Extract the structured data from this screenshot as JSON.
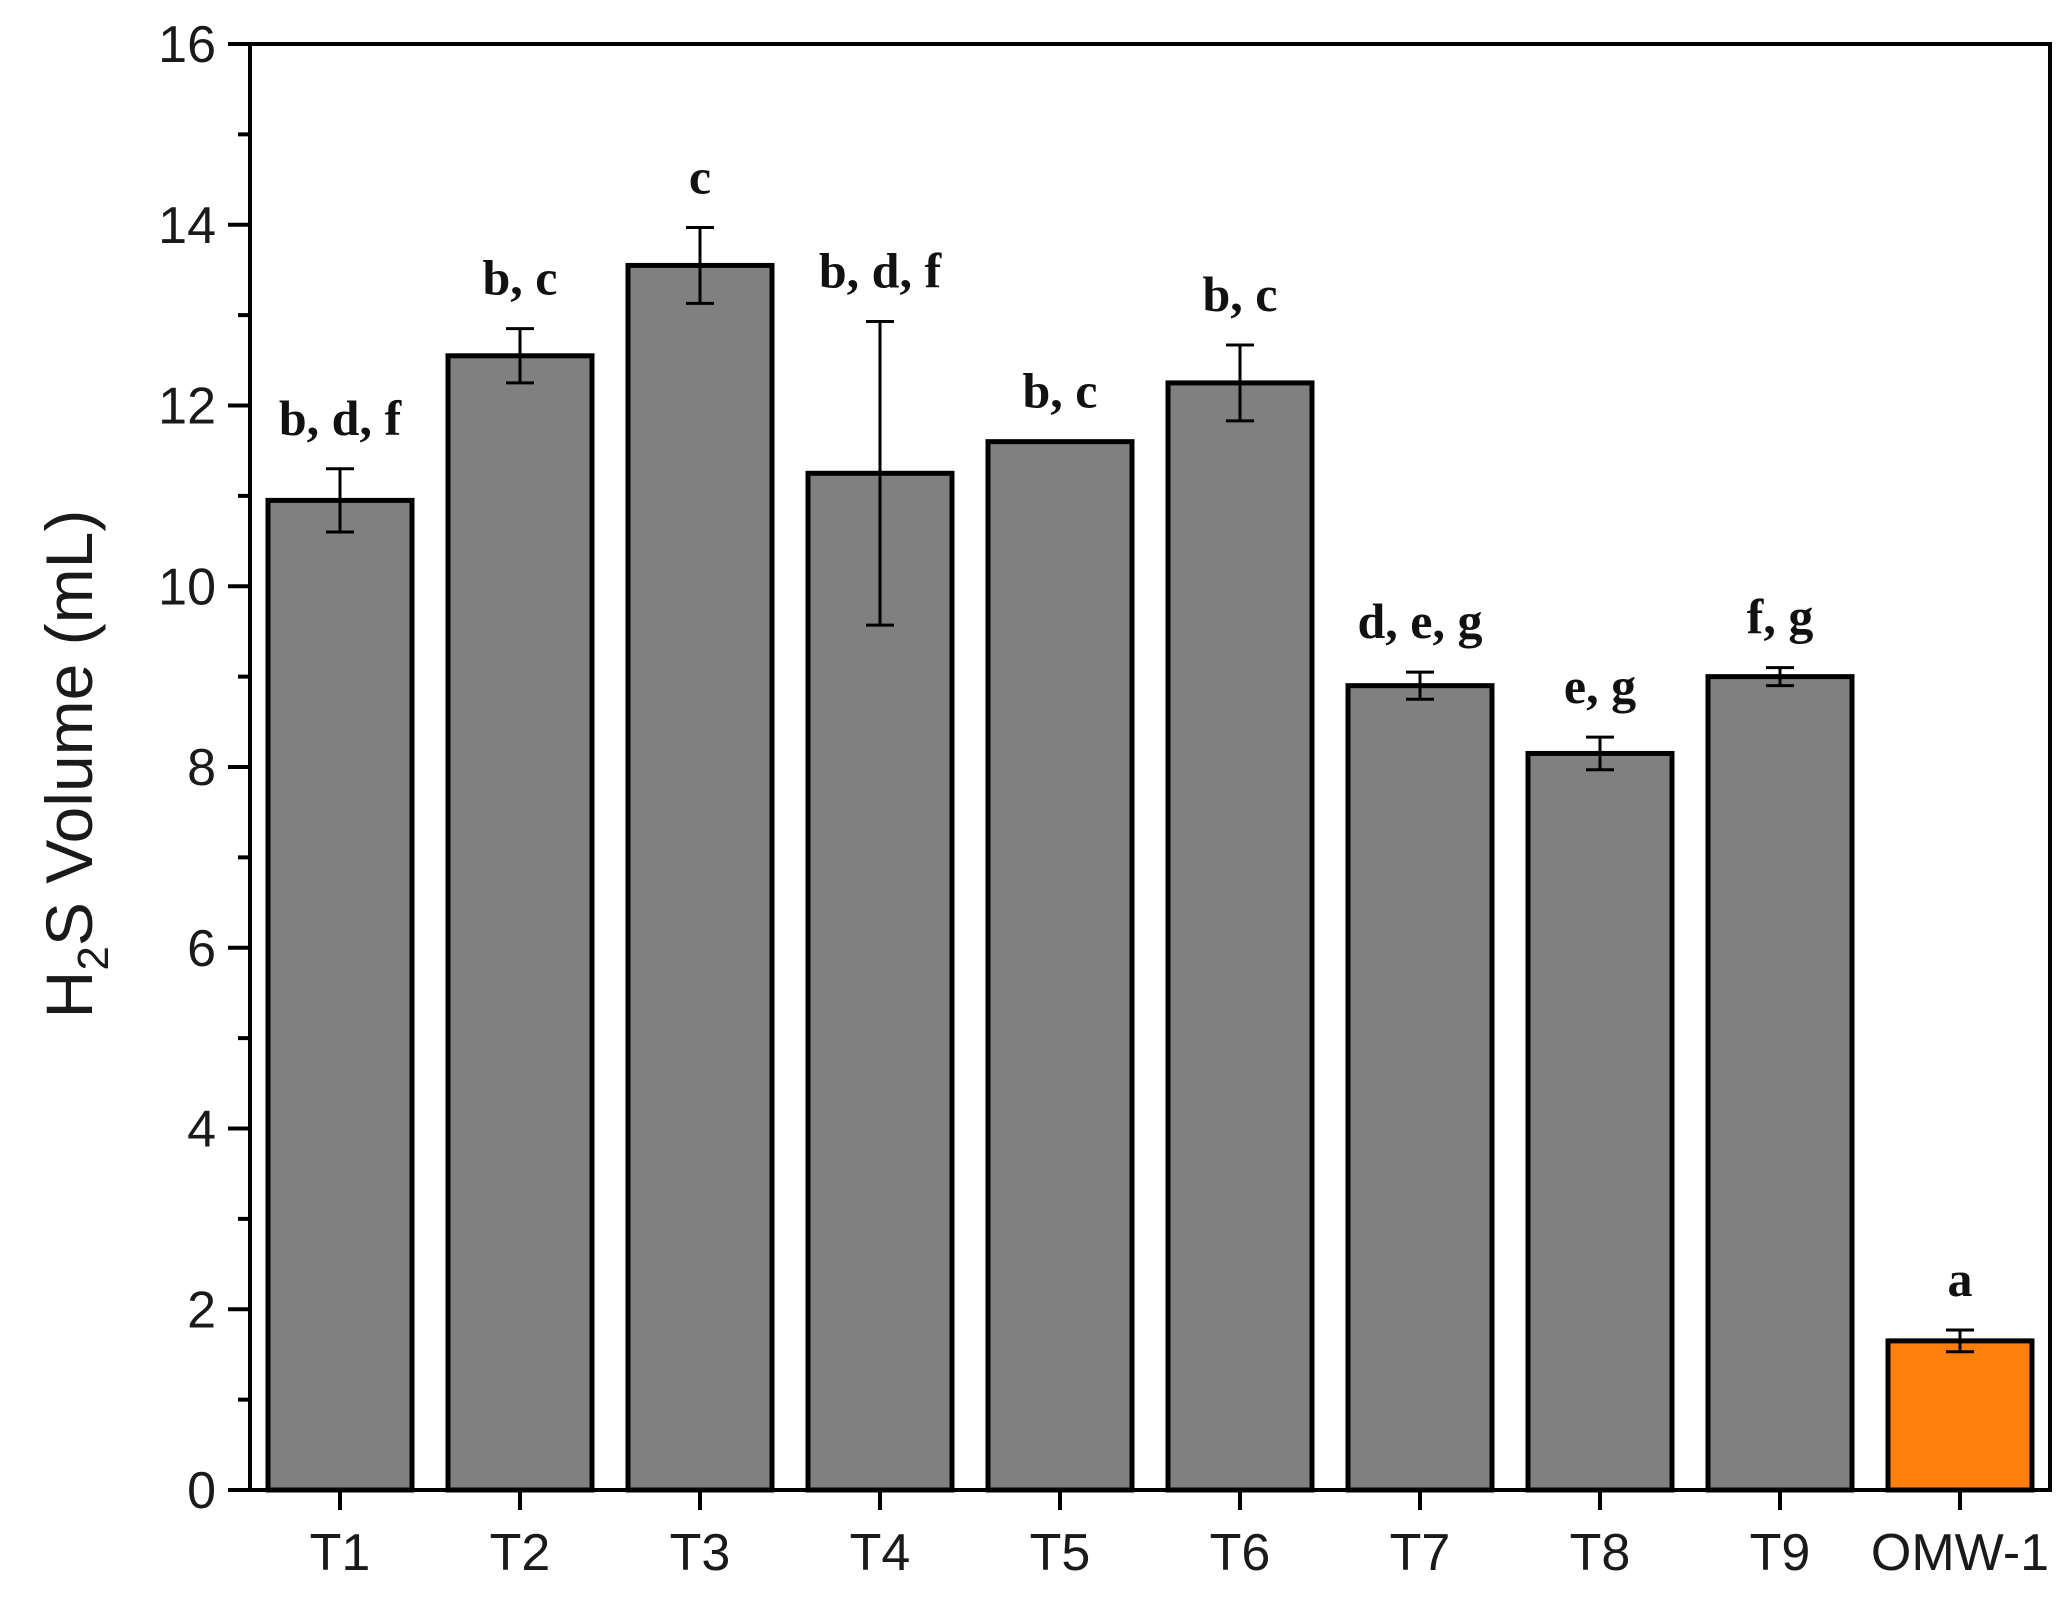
{
  "chart_data": {
    "type": "bar",
    "categories": [
      "T1",
      "T2",
      "T3",
      "T4",
      "T5",
      "T6",
      "T7",
      "T8",
      "T9",
      "OMW-1"
    ],
    "values": [
      10.95,
      12.55,
      13.55,
      11.25,
      11.6,
      12.25,
      8.9,
      8.15,
      9.0,
      1.65
    ],
    "errors": [
      0.35,
      0.3,
      0.42,
      1.68,
      0.0,
      0.42,
      0.15,
      0.18,
      0.1,
      0.12
    ],
    "significance_letters": [
      "b, d, f",
      "b, c",
      "c",
      "b, d, f",
      "b, c",
      "b, c",
      "d, e, g",
      "e, g",
      "f, g",
      "a"
    ],
    "bar_colors": [
      "#808080",
      "#808080",
      "#808080",
      "#808080",
      "#808080",
      "#808080",
      "#808080",
      "#808080",
      "#808080",
      "#ff7f0e"
    ],
    "ylabel": {
      "main": "H",
      "sub": "2",
      "rest": "S Volume (mL)"
    },
    "xlabel": "",
    "ylim": [
      0,
      16
    ],
    "yticks": [
      "0",
      "2",
      "4",
      "6",
      "8",
      "10",
      "12",
      "14",
      "16"
    ],
    "grid": false
  }
}
